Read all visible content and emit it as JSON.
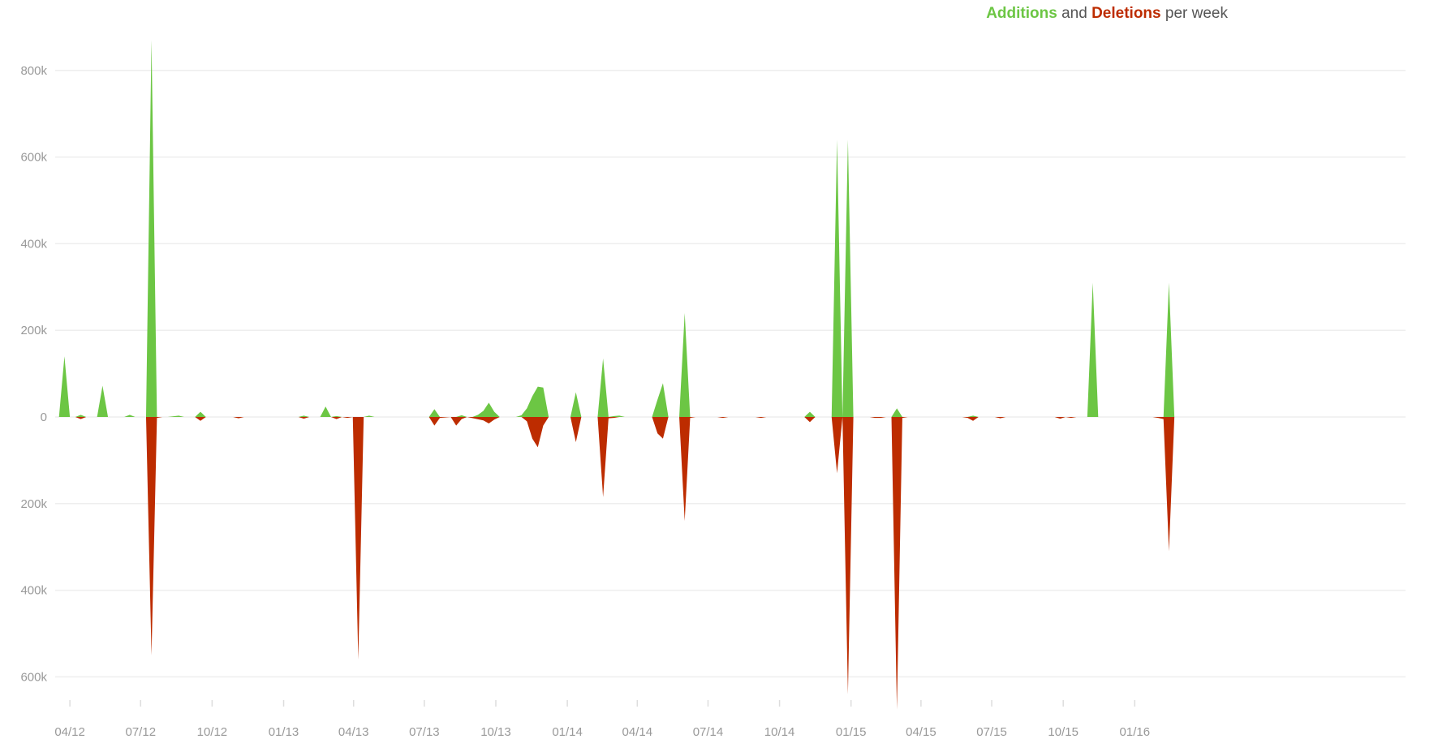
{
  "title": {
    "additions": "Additions",
    "and": "and",
    "deletions": "Deletions",
    "suffix": "per week"
  },
  "chart_data": {
    "type": "area",
    "title": "Additions and Deletions per week",
    "colors": {
      "additions": "#6cc644",
      "deletions": "#bd2c00"
    },
    "grid": true,
    "legend": "top-right",
    "y_ticks": [
      {
        "value": 800000,
        "label": "800k"
      },
      {
        "value": 600000,
        "label": "600k"
      },
      {
        "value": 400000,
        "label": "400k"
      },
      {
        "value": 200000,
        "label": "200k"
      },
      {
        "value": 0,
        "label": "0"
      },
      {
        "value": -200000,
        "label": "200k"
      },
      {
        "value": -400000,
        "label": "400k"
      },
      {
        "value": -600000,
        "label": "600k"
      }
    ],
    "ylim": [
      -680000,
      860000
    ],
    "x_ticks": [
      "04/12",
      "07/12",
      "10/12",
      "01/13",
      "04/13",
      "07/13",
      "10/13",
      "01/14",
      "04/14",
      "07/14",
      "10/14",
      "01/15",
      "04/15",
      "07/15",
      "10/15",
      "01/16"
    ],
    "x_start": "2012-03-11",
    "series": [
      {
        "name": "Additions",
        "points": [
          [
            "2012-03-11",
            0
          ],
          [
            "2012-03-18",
            0
          ],
          [
            "2012-03-25",
            140000
          ],
          [
            "2012-04-01",
            0
          ],
          [
            "2012-04-08",
            0
          ],
          [
            "2012-04-15",
            5000
          ],
          [
            "2012-04-22",
            0
          ],
          [
            "2012-04-29",
            0
          ],
          [
            "2012-05-06",
            0
          ],
          [
            "2012-05-13",
            72000
          ],
          [
            "2012-05-20",
            0
          ],
          [
            "2012-05-27",
            0
          ],
          [
            "2012-06-03",
            0
          ],
          [
            "2012-06-10",
            0
          ],
          [
            "2012-06-17",
            5000
          ],
          [
            "2012-06-24",
            0
          ],
          [
            "2012-07-01",
            0
          ],
          [
            "2012-07-08",
            0
          ],
          [
            "2012-07-15",
            870000
          ],
          [
            "2012-07-22",
            0
          ],
          [
            "2012-08-05",
            0
          ],
          [
            "2012-08-19",
            3000
          ],
          [
            "2012-08-26",
            0
          ],
          [
            "2012-09-09",
            0
          ],
          [
            "2012-09-16",
            12000
          ],
          [
            "2012-09-23",
            0
          ],
          [
            "2013-01-20",
            0
          ],
          [
            "2013-01-27",
            3000
          ],
          [
            "2013-02-03",
            0
          ],
          [
            "2013-02-17",
            0
          ],
          [
            "2013-02-24",
            24000
          ],
          [
            "2013-03-03",
            0
          ],
          [
            "2013-03-10",
            2000
          ],
          [
            "2013-03-17",
            0
          ],
          [
            "2013-03-31",
            0
          ],
          [
            "2013-04-07",
            0
          ],
          [
            "2013-04-14",
            0
          ],
          [
            "2013-04-21",
            3000
          ],
          [
            "2013-04-28",
            0
          ],
          [
            "2013-07-07",
            0
          ],
          [
            "2013-07-14",
            18000
          ],
          [
            "2013-07-21",
            0
          ],
          [
            "2013-08-11",
            0
          ],
          [
            "2013-08-18",
            4000
          ],
          [
            "2013-08-25",
            0
          ],
          [
            "2013-09-01",
            0
          ],
          [
            "2013-09-08",
            5000
          ],
          [
            "2013-09-15",
            14000
          ],
          [
            "2013-09-22",
            33000
          ],
          [
            "2013-09-29",
            12000
          ],
          [
            "2013-10-06",
            0
          ],
          [
            "2013-10-27",
            0
          ],
          [
            "2013-11-03",
            4000
          ],
          [
            "2013-11-10",
            20000
          ],
          [
            "2013-11-17",
            48000
          ],
          [
            "2013-11-24",
            70000
          ],
          [
            "2013-12-01",
            68000
          ],
          [
            "2013-12-08",
            0
          ],
          [
            "2014-01-05",
            0
          ],
          [
            "2014-01-12",
            57000
          ],
          [
            "2014-01-19",
            0
          ],
          [
            "2014-02-09",
            0
          ],
          [
            "2014-02-16",
            135000
          ],
          [
            "2014-02-23",
            0
          ],
          [
            "2014-03-02",
            2000
          ],
          [
            "2014-03-09",
            3000
          ],
          [
            "2014-03-16",
            0
          ],
          [
            "2014-04-20",
            0
          ],
          [
            "2014-04-27",
            40000
          ],
          [
            "2014-05-04",
            78000
          ],
          [
            "2014-05-11",
            0
          ],
          [
            "2014-05-25",
            0
          ],
          [
            "2014-06-01",
            240000
          ],
          [
            "2014-06-08",
            0
          ],
          [
            "2014-11-02",
            0
          ],
          [
            "2014-11-09",
            12000
          ],
          [
            "2014-11-16",
            0
          ],
          [
            "2014-12-07",
            0
          ],
          [
            "2014-12-14",
            640000
          ],
          [
            "2014-12-21",
            0
          ],
          [
            "2014-12-28",
            640000
          ],
          [
            "2015-01-04",
            0
          ],
          [
            "2015-02-22",
            0
          ],
          [
            "2015-03-01",
            20000
          ],
          [
            "2015-03-08",
            0
          ],
          [
            "2015-05-31",
            0
          ],
          [
            "2015-06-07",
            3000
          ],
          [
            "2015-06-14",
            0
          ],
          [
            "2015-10-18",
            0
          ],
          [
            "2015-11-01",
            0
          ],
          [
            "2015-11-08",
            310000
          ],
          [
            "2015-11-15",
            0
          ],
          [
            "2016-01-24",
            0
          ],
          [
            "2016-02-07",
            0
          ],
          [
            "2016-02-14",
            310000
          ],
          [
            "2016-02-21",
            0
          ],
          [
            "2016-03-06",
            0
          ]
        ]
      },
      {
        "name": "Deletions",
        "points": [
          [
            "2012-03-11",
            0
          ],
          [
            "2012-04-08",
            0
          ],
          [
            "2012-04-15",
            -5000
          ],
          [
            "2012-04-22",
            0
          ],
          [
            "2012-07-08",
            0
          ],
          [
            "2012-07-15",
            -550000
          ],
          [
            "2012-07-22",
            -2000
          ],
          [
            "2012-07-29",
            0
          ],
          [
            "2012-09-09",
            0
          ],
          [
            "2012-09-16",
            -9000
          ],
          [
            "2012-09-23",
            0
          ],
          [
            "2012-10-28",
            0
          ],
          [
            "2012-11-04",
            -3000
          ],
          [
            "2012-11-11",
            0
          ],
          [
            "2013-01-20",
            0
          ],
          [
            "2013-01-27",
            -4000
          ],
          [
            "2013-02-03",
            0
          ],
          [
            "2013-03-03",
            0
          ],
          [
            "2013-03-10",
            -5000
          ],
          [
            "2013-03-17",
            0
          ],
          [
            "2013-03-24",
            -2000
          ],
          [
            "2013-03-31",
            0
          ],
          [
            "2013-04-07",
            -560000
          ],
          [
            "2013-04-14",
            0
          ],
          [
            "2013-07-07",
            0
          ],
          [
            "2013-07-14",
            -20000
          ],
          [
            "2013-07-21",
            -2000
          ],
          [
            "2013-08-04",
            0
          ],
          [
            "2013-08-11",
            -20000
          ],
          [
            "2013-08-18",
            -5000
          ],
          [
            "2013-08-25",
            0
          ],
          [
            "2013-09-15",
            -8000
          ],
          [
            "2013-09-22",
            -15000
          ],
          [
            "2013-09-29",
            -6000
          ],
          [
            "2013-10-06",
            0
          ],
          [
            "2013-11-03",
            0
          ],
          [
            "2013-11-10",
            -10000
          ],
          [
            "2013-11-17",
            -50000
          ],
          [
            "2013-11-24",
            -70000
          ],
          [
            "2013-12-01",
            -20000
          ],
          [
            "2013-12-08",
            0
          ],
          [
            "2014-01-05",
            0
          ],
          [
            "2014-01-12",
            -58000
          ],
          [
            "2014-01-19",
            0
          ],
          [
            "2014-02-09",
            0
          ],
          [
            "2014-02-16",
            -185000
          ],
          [
            "2014-02-23",
            -3000
          ],
          [
            "2014-03-02",
            -2000
          ],
          [
            "2014-03-09",
            0
          ],
          [
            "2014-04-20",
            0
          ],
          [
            "2014-04-27",
            -38000
          ],
          [
            "2014-05-04",
            -50000
          ],
          [
            "2014-05-11",
            0
          ],
          [
            "2014-05-25",
            0
          ],
          [
            "2014-06-01",
            -240000
          ],
          [
            "2014-06-08",
            -2000
          ],
          [
            "2014-06-15",
            0
          ],
          [
            "2014-07-13",
            0
          ],
          [
            "2014-07-20",
            -2000
          ],
          [
            "2014-07-27",
            0
          ],
          [
            "2014-08-31",
            0
          ],
          [
            "2014-09-07",
            -2000
          ],
          [
            "2014-09-14",
            0
          ],
          [
            "2014-11-02",
            0
          ],
          [
            "2014-11-09",
            -12000
          ],
          [
            "2014-11-16",
            0
          ],
          [
            "2014-12-07",
            0
          ],
          [
            "2014-12-14",
            -130000
          ],
          [
            "2014-12-21",
            0
          ],
          [
            "2014-12-28",
            -640000
          ],
          [
            "2015-01-04",
            0
          ],
          [
            "2015-01-25",
            0
          ],
          [
            "2015-02-01",
            -2000
          ],
          [
            "2015-02-08",
            -2000
          ],
          [
            "2015-02-15",
            0
          ],
          [
            "2015-02-22",
            0
          ],
          [
            "2015-03-01",
            -675000
          ],
          [
            "2015-03-08",
            -2000
          ],
          [
            "2015-03-15",
            0
          ],
          [
            "2015-05-24",
            0
          ],
          [
            "2015-05-31",
            -2000
          ],
          [
            "2015-06-07",
            -9000
          ],
          [
            "2015-06-14",
            0
          ],
          [
            "2015-07-05",
            0
          ],
          [
            "2015-07-12",
            -3000
          ],
          [
            "2015-07-19",
            0
          ],
          [
            "2015-09-20",
            0
          ],
          [
            "2015-09-27",
            -4000
          ],
          [
            "2015-10-04",
            0
          ],
          [
            "2015-10-11",
            -2000
          ],
          [
            "2015-10-18",
            0
          ],
          [
            "2016-01-24",
            0
          ],
          [
            "2016-01-31",
            -2000
          ],
          [
            "2016-02-07",
            -5000
          ],
          [
            "2016-02-14",
            -310000
          ],
          [
            "2016-02-21",
            0
          ],
          [
            "2016-03-06",
            0
          ]
        ]
      }
    ]
  }
}
